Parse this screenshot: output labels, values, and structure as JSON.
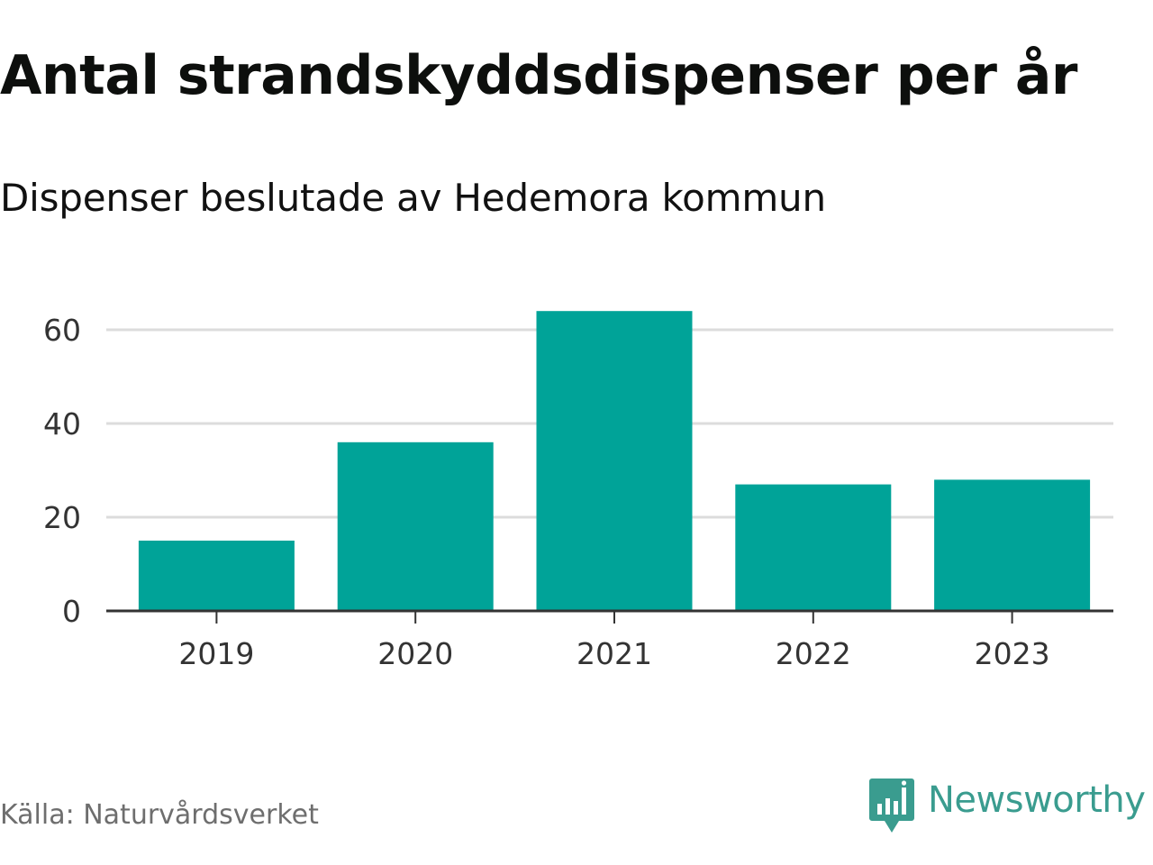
{
  "header": {
    "title": "Antal strandskyddsdispenser per år",
    "subtitle": "Dispenser beslutade av Hedemora kommun"
  },
  "footer": {
    "source": "Källa: Naturvårdsverket",
    "brand": "Newsworthy",
    "brand_icon": "bar-chart-speech-bubble-icon"
  },
  "colors": {
    "bar": "#00a398",
    "grid": "#dcdcdc",
    "axis": "#333333",
    "tick_text": "#333333",
    "brand": "#3a9c8f"
  },
  "chart_data": {
    "type": "bar",
    "categories": [
      "2019",
      "2020",
      "2021",
      "2022",
      "2023"
    ],
    "values": [
      15,
      36,
      64,
      27,
      28
    ],
    "ylim": [
      0,
      70
    ],
    "yticks": [
      0,
      20,
      40,
      60
    ],
    "xlabel": "",
    "ylabel": "",
    "grid": true,
    "legend": "none"
  }
}
